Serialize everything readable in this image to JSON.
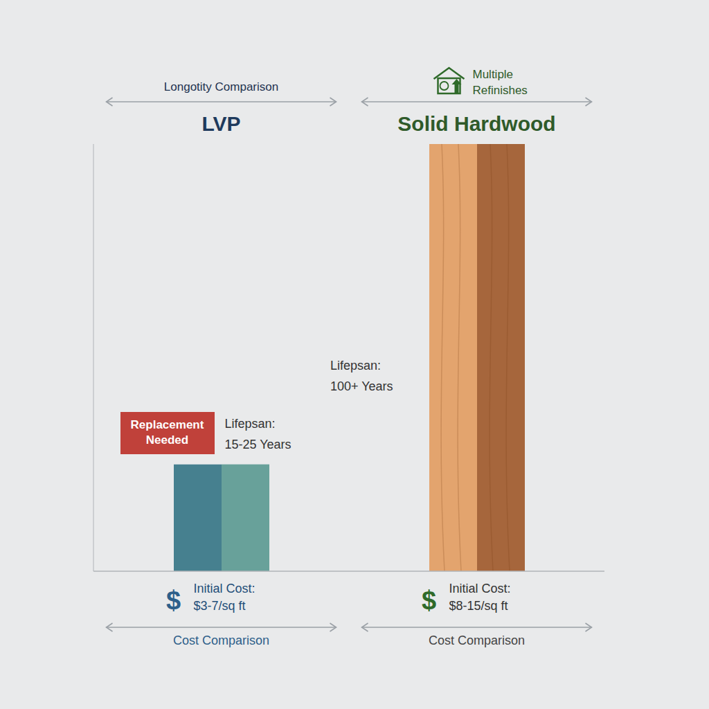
{
  "chart_data": {
    "type": "bar",
    "categories": [
      "LVP",
      "Solid Hardwood"
    ],
    "values": [
      25,
      100
    ],
    "colors": [
      "#46808f",
      "#e3a46e"
    ],
    "ylim": [
      0,
      100
    ],
    "tick_labels": false,
    "grid": false,
    "panel_headers": [
      "Longotity Comparison",
      "Multiple Refinishes"
    ],
    "annotations": [
      {
        "badge": "Replacement Needed",
        "text": [
          "Lifepsan:",
          "15-25 Years"
        ]
      },
      {
        "text": [
          "Lifepsan:",
          "100+ Years"
        ]
      }
    ],
    "cost_symbol": "$",
    "cost_labels": [
      [
        "Initial Cost:",
        "$3-7/sq ft"
      ],
      [
        "Initial Cost:",
        "$8-15/sq ft"
      ]
    ],
    "footers": [
      "Cost Comparison",
      "Cost Comparison"
    ]
  }
}
